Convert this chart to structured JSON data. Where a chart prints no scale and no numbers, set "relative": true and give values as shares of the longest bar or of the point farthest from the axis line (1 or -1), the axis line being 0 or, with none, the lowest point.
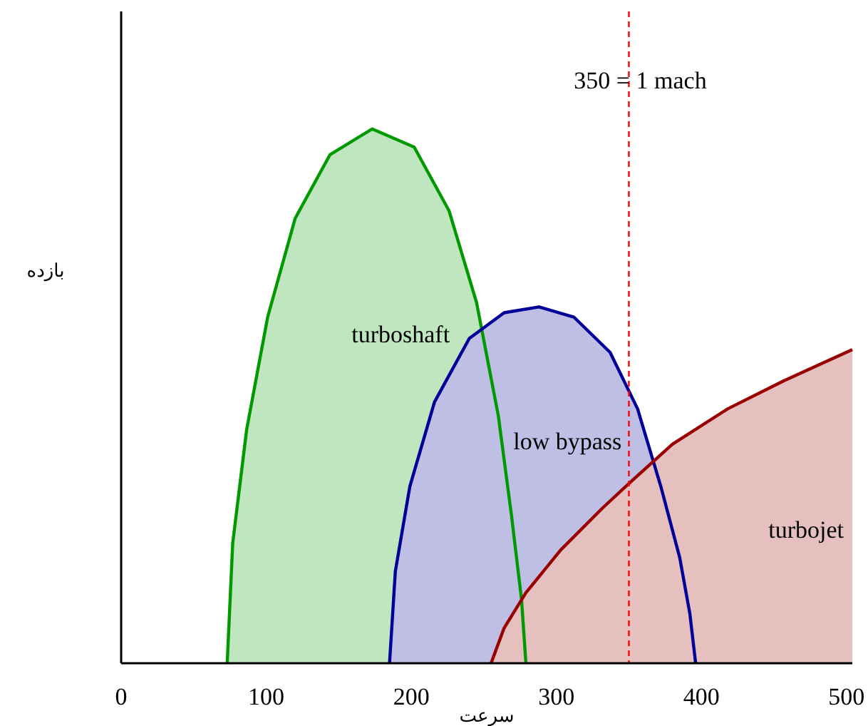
{
  "chart_data": {
    "type": "area",
    "relative": true,
    "xlabel": "سرعت",
    "ylabel": "بازده",
    "xlim": [
      0,
      504
    ],
    "xticks": [
      0,
      100,
      200,
      300,
      400,
      500
    ],
    "legend": false,
    "grid": false,
    "line_style": "solid",
    "series": [
      {
        "name": "turboshaft",
        "color": "#009900",
        "x": [
          73.1,
          76.9,
          86.5,
          101,
          120,
          144,
          173,
          202,
          226,
          245,
          260,
          269,
          276,
          279
        ],
        "values": [
          0,
          0.225,
          0.437,
          0.648,
          0.833,
          0.952,
          1,
          0.966,
          0.847,
          0.675,
          0.463,
          0.278,
          0.119,
          0
        ]
      },
      {
        "name": "low bypass",
        "color": "#000099",
        "x": [
          185,
          189,
          199,
          216,
          240,
          264,
          288,
          312,
          337,
          356,
          372,
          385,
          392,
          396
        ],
        "values": [
          0,
          0.172,
          0.331,
          0.489,
          0.608,
          0.656,
          0.667,
          0.648,
          0.582,
          0.476,
          0.331,
          0.198,
          0.093,
          0
        ]
      },
      {
        "name": "turbojet",
        "color": "#990000",
        "x": [
          255,
          264,
          279,
          303,
          332,
          351,
          380,
          418,
          457,
          504
        ],
        "values": [
          0,
          0.066,
          0.132,
          0.212,
          0.291,
          0.339,
          0.41,
          0.476,
          0.529,
          0.587
        ]
      }
    ],
    "ref_lines": [
      {
        "axis": "x",
        "value": 350,
        "label": "350 = 1 mach",
        "color": "#ff0000",
        "line_style": "dashed"
      }
    ]
  }
}
